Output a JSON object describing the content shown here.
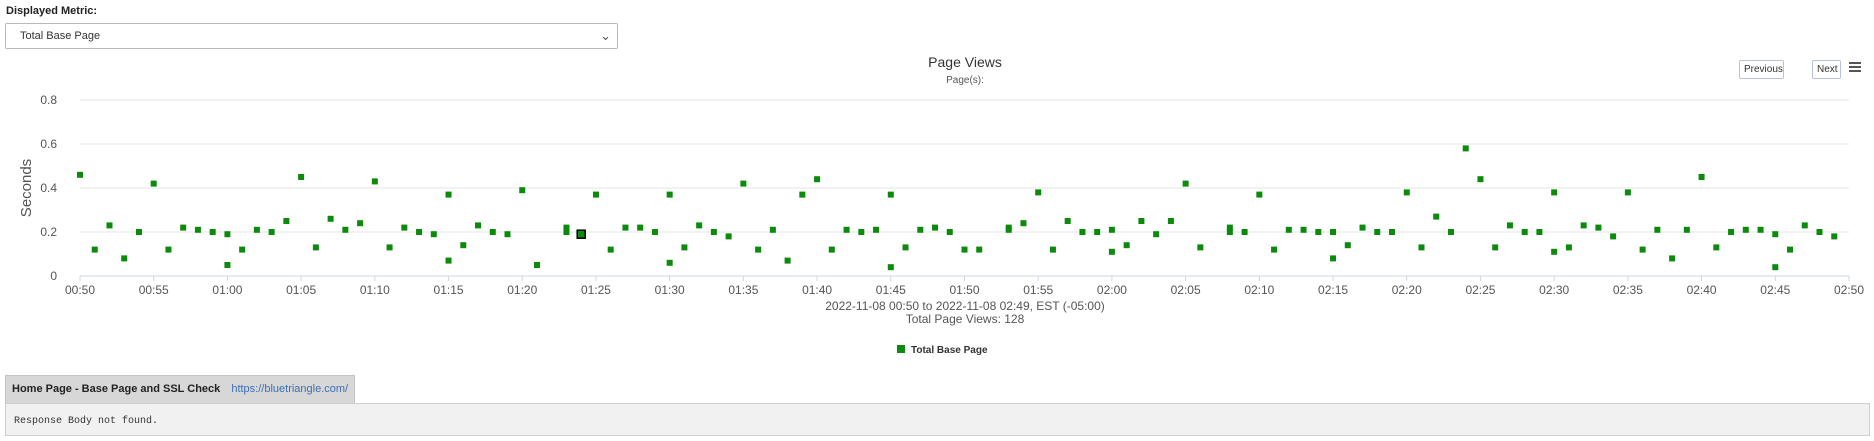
{
  "metric_selector": {
    "label": "Displayed Metric:",
    "selected": "Total Base Page"
  },
  "buttons": {
    "previous": "Previous",
    "next": "Next"
  },
  "detail_tab": {
    "title": "Home Page - Base Page and SSL Check",
    "url": "https://bluetriangle.com/"
  },
  "response_body": "Response Body not found.",
  "colors": {
    "series": "#0b8a0b",
    "selected_marker_border": "#000000",
    "grid": "#e6e6e6"
  },
  "chart_data": {
    "type": "scatter",
    "title": "Page Views",
    "subtitle": "Page(s):",
    "ylabel": "Seconds",
    "xlabel": "2022-11-08 00:50 to 2022-11-08 02:49, EST (-05:00)",
    "caption": "Total Page Views: 128",
    "ylim": [
      0,
      0.8
    ],
    "yticks": [
      "0",
      "0.2",
      "0.4",
      "0.6",
      "0.8"
    ],
    "xlim": [
      "00:50",
      "02:50"
    ],
    "xticks": [
      "00:50",
      "00:55",
      "01:00",
      "01:05",
      "01:10",
      "01:15",
      "01:20",
      "01:25",
      "01:30",
      "01:35",
      "01:40",
      "01:45",
      "01:50",
      "01:55",
      "02:00",
      "02:05",
      "02:10",
      "02:15",
      "02:20",
      "02:25",
      "02:30",
      "02:35",
      "02:40",
      "02:45",
      "02:50"
    ],
    "grid": true,
    "legend_position": "bottom-center",
    "series": [
      {
        "name": "Total Base Page",
        "marker": "square",
        "points": [
          [
            "00:50",
            0.46
          ],
          [
            "00:51",
            0.12
          ],
          [
            "00:52",
            0.23
          ],
          [
            "00:53",
            0.08
          ],
          [
            "00:54",
            0.2
          ],
          [
            "00:55",
            0.42
          ],
          [
            "00:56",
            0.12
          ],
          [
            "00:57",
            0.22
          ],
          [
            "00:58",
            0.21
          ],
          [
            "00:59",
            0.2
          ],
          [
            "01:00",
            0.05
          ],
          [
            "01:00",
            0.19
          ],
          [
            "01:01",
            0.12
          ],
          [
            "01:02",
            0.21
          ],
          [
            "01:03",
            0.2
          ],
          [
            "01:04",
            0.25
          ],
          [
            "01:05",
            0.45
          ],
          [
            "01:06",
            0.13
          ],
          [
            "01:07",
            0.26
          ],
          [
            "01:08",
            0.21
          ],
          [
            "01:09",
            0.24
          ],
          [
            "01:10",
            0.43
          ],
          [
            "01:11",
            0.13
          ],
          [
            "01:12",
            0.22
          ],
          [
            "01:13",
            0.2
          ],
          [
            "01:14",
            0.19
          ],
          [
            "01:15",
            0.07
          ],
          [
            "01:15",
            0.37
          ],
          [
            "01:16",
            0.14
          ],
          [
            "01:17",
            0.23
          ],
          [
            "01:18",
            0.2
          ],
          [
            "01:19",
            0.19
          ],
          [
            "01:20",
            0.39
          ],
          [
            "01:21",
            0.05
          ],
          [
            "01:23",
            0.22
          ],
          [
            "01:23",
            0.2
          ],
          [
            "01:24",
            0.19
          ],
          [
            "01:25",
            0.37
          ],
          [
            "01:26",
            0.12
          ],
          [
            "01:27",
            0.22
          ],
          [
            "01:28",
            0.22
          ],
          [
            "01:29",
            0.2
          ],
          [
            "01:30",
            0.06
          ],
          [
            "01:30",
            0.37
          ],
          [
            "01:31",
            0.13
          ],
          [
            "01:32",
            0.23
          ],
          [
            "01:33",
            0.2
          ],
          [
            "01:34",
            0.18
          ],
          [
            "01:35",
            0.42
          ],
          [
            "01:36",
            0.12
          ],
          [
            "01:37",
            0.21
          ],
          [
            "01:38",
            0.07
          ],
          [
            "01:39",
            0.37
          ],
          [
            "01:40",
            0.44
          ],
          [
            "01:41",
            0.12
          ],
          [
            "01:42",
            0.21
          ],
          [
            "01:43",
            0.2
          ],
          [
            "01:44",
            0.21
          ],
          [
            "01:45",
            0.04
          ],
          [
            "01:45",
            0.37
          ],
          [
            "01:46",
            0.13
          ],
          [
            "01:47",
            0.21
          ],
          [
            "01:48",
            0.22
          ],
          [
            "01:49",
            0.2
          ],
          [
            "01:50",
            0.12
          ],
          [
            "01:51",
            0.12
          ],
          [
            "01:53",
            0.22
          ],
          [
            "01:53",
            0.21
          ],
          [
            "01:54",
            0.24
          ],
          [
            "01:55",
            0.38
          ],
          [
            "01:56",
            0.12
          ],
          [
            "01:57",
            0.25
          ],
          [
            "01:58",
            0.2
          ],
          [
            "01:59",
            0.2
          ],
          [
            "02:00",
            0.11
          ],
          [
            "02:00",
            0.21
          ],
          [
            "02:01",
            0.14
          ],
          [
            "02:02",
            0.25
          ],
          [
            "02:03",
            0.19
          ],
          [
            "02:04",
            0.25
          ],
          [
            "02:05",
            0.42
          ],
          [
            "02:06",
            0.13
          ],
          [
            "02:08",
            0.22
          ],
          [
            "02:08",
            0.2
          ],
          [
            "02:09",
            0.2
          ],
          [
            "02:10",
            0.37
          ],
          [
            "02:11",
            0.12
          ],
          [
            "02:12",
            0.21
          ],
          [
            "02:13",
            0.21
          ],
          [
            "02:14",
            0.2
          ],
          [
            "02:15",
            0.08
          ],
          [
            "02:15",
            0.2
          ],
          [
            "02:16",
            0.14
          ],
          [
            "02:17",
            0.22
          ],
          [
            "02:18",
            0.2
          ],
          [
            "02:19",
            0.2
          ],
          [
            "02:20",
            0.38
          ],
          [
            "02:21",
            0.13
          ],
          [
            "02:22",
            0.27
          ],
          [
            "02:23",
            0.2
          ],
          [
            "02:24",
            0.58
          ],
          [
            "02:25",
            0.44
          ],
          [
            "02:26",
            0.13
          ],
          [
            "02:27",
            0.23
          ],
          [
            "02:28",
            0.2
          ],
          [
            "02:29",
            0.2
          ],
          [
            "02:30",
            0.11
          ],
          [
            "02:30",
            0.38
          ],
          [
            "02:31",
            0.13
          ],
          [
            "02:32",
            0.23
          ],
          [
            "02:33",
            0.22
          ],
          [
            "02:34",
            0.18
          ],
          [
            "02:35",
            0.38
          ],
          [
            "02:36",
            0.12
          ],
          [
            "02:37",
            0.21
          ],
          [
            "02:38",
            0.08
          ],
          [
            "02:39",
            0.21
          ],
          [
            "02:40",
            0.45
          ],
          [
            "02:41",
            0.13
          ],
          [
            "02:42",
            0.2
          ],
          [
            "02:43",
            0.21
          ],
          [
            "02:44",
            0.21
          ],
          [
            "02:45",
            0.04
          ],
          [
            "02:45",
            0.19
          ],
          [
            "02:46",
            0.12
          ],
          [
            "02:47",
            0.23
          ],
          [
            "02:48",
            0.2
          ],
          [
            "02:49",
            0.18
          ]
        ]
      }
    ],
    "selected_point": [
      "01:24",
      0.19
    ]
  }
}
